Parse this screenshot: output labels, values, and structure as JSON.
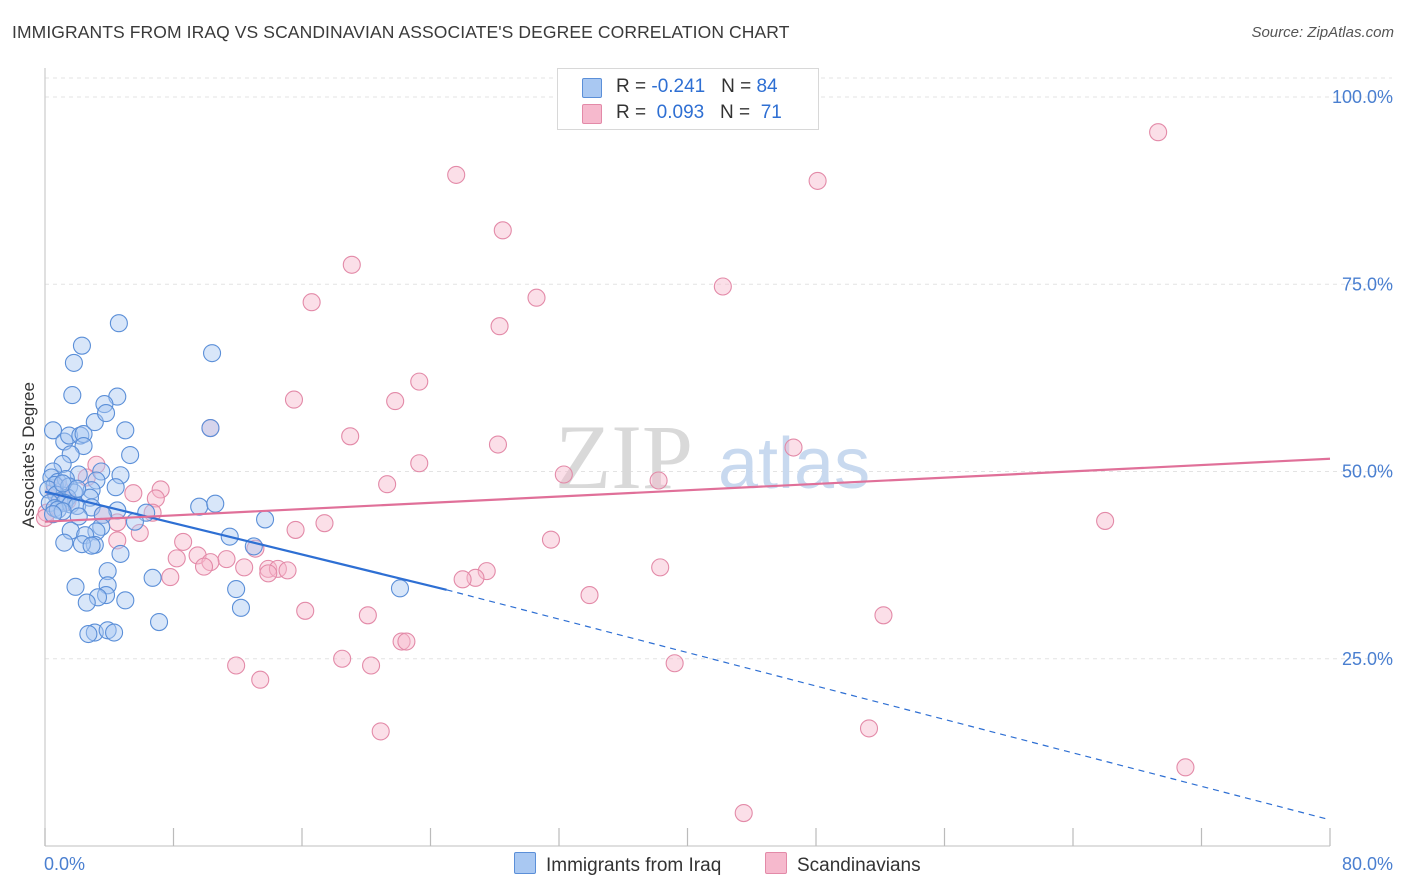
{
  "header": {
    "title": "IMMIGRANTS FROM IRAQ VS SCANDINAVIAN ASSOCIATE'S DEGREE CORRELATION CHART",
    "source": "Source: ZipAtlas.com"
  },
  "legend": {
    "rows": [
      {
        "r_label": "R = ",
        "r_value": "-0.241",
        "n_label": "N = ",
        "n_value": "84",
        "color": "#a9c8f2"
      },
      {
        "r_label": "R = ",
        "r_value": " 0.093",
        "n_label": "N = ",
        "n_value": " 71",
        "color": "#f6b9cd"
      }
    ]
  },
  "bottom_legend": {
    "series1": "Immigrants from Iraq",
    "series2": "Scandinavians"
  },
  "watermark": {
    "zip": "ZIP",
    "atlas": "atlas"
  },
  "chart_data": {
    "type": "scatter",
    "title": "IMMIGRANTS FROM IRAQ VS SCANDINAVIAN ASSOCIATE'S DEGREE CORRELATION CHART",
    "xlabel": "",
    "ylabel": "Associate's Degree",
    "xlim": [
      0,
      80
    ],
    "ylim": [
      0,
      105
    ],
    "x_tick_labels": [
      "0.0%",
      "80.0%"
    ],
    "y_ticks": [
      25,
      50,
      75,
      100
    ],
    "y_tick_labels": [
      "25.0%",
      "50.0%",
      "75.0%",
      "100.0%"
    ],
    "grid": true,
    "legend_position": "top-center",
    "colors": {
      "iraq_fill": "#a9c8f2",
      "iraq_stroke": "#5b8fd8",
      "iraq_line": "#2e6fd3",
      "scand_fill": "#f6b9cd",
      "scand_stroke": "#e38aa8",
      "scand_line": "#e07099",
      "tick": "#4a7fd0",
      "grid": "#e3e3e3"
    },
    "series": [
      {
        "name": "Immigrants from Iraq",
        "R": -0.241,
        "N": 84,
        "trend": {
          "x0": 0,
          "y0": 47.3,
          "x1": 25,
          "y1": 34.2,
          "dashed_to_x": 80,
          "dashed_to_y": 3.5
        },
        "points": [
          [
            0.5,
            55.5
          ],
          [
            1.2,
            54
          ],
          [
            1.5,
            54.8
          ],
          [
            2.2,
            54.8
          ],
          [
            2.4,
            55
          ],
          [
            3.1,
            56.6
          ],
          [
            4.5,
            60
          ],
          [
            2.3,
            66.8
          ],
          [
            1.8,
            64.5
          ],
          [
            4.6,
            69.8
          ],
          [
            10.4,
            65.8
          ],
          [
            1.7,
            60.2
          ],
          [
            3.7,
            59
          ],
          [
            3.8,
            57.8
          ],
          [
            5,
            55.5
          ],
          [
            10.3,
            55.8
          ],
          [
            2.4,
            53.4
          ],
          [
            5.3,
            52.2
          ],
          [
            1.6,
            52.3
          ],
          [
            1.1,
            51
          ],
          [
            0.5,
            50
          ],
          [
            3.5,
            50
          ],
          [
            4.7,
            49.5
          ],
          [
            0.4,
            49.2
          ],
          [
            0.8,
            48.6
          ],
          [
            2.1,
            49.6
          ],
          [
            1.3,
            49
          ],
          [
            3.2,
            48.8
          ],
          [
            0.6,
            48.2
          ],
          [
            1.5,
            48
          ],
          [
            4.4,
            47.9
          ],
          [
            2.9,
            47.5
          ],
          [
            0.2,
            47.6
          ],
          [
            1.8,
            47.2
          ],
          [
            0.7,
            46.9
          ],
          [
            1.4,
            46.5
          ],
          [
            2.8,
            46.5
          ],
          [
            0.9,
            46
          ],
          [
            1.2,
            45.8
          ],
          [
            1.6,
            45.6
          ],
          [
            2,
            45.4
          ],
          [
            0.3,
            45.8
          ],
          [
            0.6,
            45.1
          ],
          [
            2.9,
            45.2
          ],
          [
            0.8,
            44.9
          ],
          [
            1.1,
            44.7
          ],
          [
            4.5,
            44.8
          ],
          [
            9.6,
            45.3
          ],
          [
            10.6,
            45.7
          ],
          [
            3.6,
            44.2
          ],
          [
            6.3,
            44.5
          ],
          [
            2.1,
            44
          ],
          [
            0.5,
            44.3
          ],
          [
            13.7,
            43.6
          ],
          [
            5.6,
            43.3
          ],
          [
            1.6,
            42.1
          ],
          [
            3.5,
            42.6
          ],
          [
            3.2,
            42
          ],
          [
            2.5,
            41.5
          ],
          [
            11.5,
            41.3
          ],
          [
            1.2,
            40.5
          ],
          [
            3.1,
            40.2
          ],
          [
            2.3,
            40.3
          ],
          [
            2.9,
            40.1
          ],
          [
            4.7,
            39
          ],
          [
            13,
            40
          ],
          [
            3.9,
            36.7
          ],
          [
            6.7,
            35.8
          ],
          [
            3.9,
            34.8
          ],
          [
            1.9,
            34.6
          ],
          [
            11.9,
            34.3
          ],
          [
            22.1,
            34.4
          ],
          [
            3.8,
            33.5
          ],
          [
            3.3,
            33.2
          ],
          [
            5,
            32.8
          ],
          [
            2.6,
            32.5
          ],
          [
            12.2,
            31.8
          ],
          [
            7.1,
            29.9
          ],
          [
            3.1,
            28.5
          ],
          [
            3.9,
            28.8
          ],
          [
            4.3,
            28.5
          ],
          [
            2.7,
            28.3
          ],
          [
            1.1,
            48.4
          ],
          [
            2.0,
            47.7
          ]
        ]
      },
      {
        "name": "Scandinavians",
        "R": 0.093,
        "N": 71,
        "trend": {
          "x0": 0,
          "y0": 43.3,
          "x1": 80,
          "y1": 51.7
        },
        "points": [
          [
            25.6,
            89.6
          ],
          [
            28.5,
            82.2
          ],
          [
            19.1,
            77.6
          ],
          [
            16.6,
            72.6
          ],
          [
            30.6,
            73.2
          ],
          [
            28.3,
            69.4
          ],
          [
            42.2,
            74.7
          ],
          [
            48.1,
            88.8
          ],
          [
            69.3,
            95.3
          ],
          [
            23.3,
            62
          ],
          [
            21.8,
            59.4
          ],
          [
            15.5,
            59.6
          ],
          [
            10.3,
            55.8
          ],
          [
            19,
            54.7
          ],
          [
            28.2,
            53.6
          ],
          [
            46.6,
            53.2
          ],
          [
            23.3,
            51.1
          ],
          [
            3.2,
            50.9
          ],
          [
            2.6,
            49.2
          ],
          [
            32.3,
            49.6
          ],
          [
            38.2,
            48.8
          ],
          [
            21.3,
            48.3
          ],
          [
            7.2,
            47.6
          ],
          [
            0.9,
            47.8
          ],
          [
            5.5,
            47.1
          ],
          [
            6.9,
            46.4
          ],
          [
            0.6,
            47.4
          ],
          [
            1.4,
            46.1
          ],
          [
            0.1,
            44.5
          ],
          [
            0,
            43.8
          ],
          [
            6.7,
            44.5
          ],
          [
            3.6,
            44.2
          ],
          [
            4.5,
            43.2
          ],
          [
            17.4,
            43.1
          ],
          [
            66,
            43.4
          ],
          [
            15.6,
            42.2
          ],
          [
            5.9,
            41.8
          ],
          [
            4.5,
            40.8
          ],
          [
            8.6,
            40.6
          ],
          [
            31.5,
            40.9
          ],
          [
            13.1,
            39.7
          ],
          [
            9.5,
            38.8
          ],
          [
            8.2,
            38.4
          ],
          [
            11.3,
            38.3
          ],
          [
            10.3,
            37.9
          ],
          [
            9.9,
            37.3
          ],
          [
            12.4,
            37.2
          ],
          [
            13.9,
            37
          ],
          [
            38.3,
            37.2
          ],
          [
            14.5,
            37
          ],
          [
            15.1,
            36.8
          ],
          [
            27.5,
            36.7
          ],
          [
            13.9,
            36.4
          ],
          [
            7.8,
            35.9
          ],
          [
            26.8,
            35.8
          ],
          [
            26,
            35.6
          ],
          [
            33.9,
            33.5
          ],
          [
            16.2,
            31.4
          ],
          [
            20.1,
            30.8
          ],
          [
            52.2,
            30.8
          ],
          [
            22.2,
            27.3
          ],
          [
            22.5,
            27.3
          ],
          [
            18.5,
            25
          ],
          [
            20.3,
            24.1
          ],
          [
            39.2,
            24.4
          ],
          [
            11.9,
            24.1
          ],
          [
            13.4,
            22.2
          ],
          [
            51.3,
            15.7
          ],
          [
            20.9,
            15.3
          ],
          [
            71,
            10.5
          ],
          [
            43.5,
            4.4
          ]
        ]
      }
    ]
  }
}
